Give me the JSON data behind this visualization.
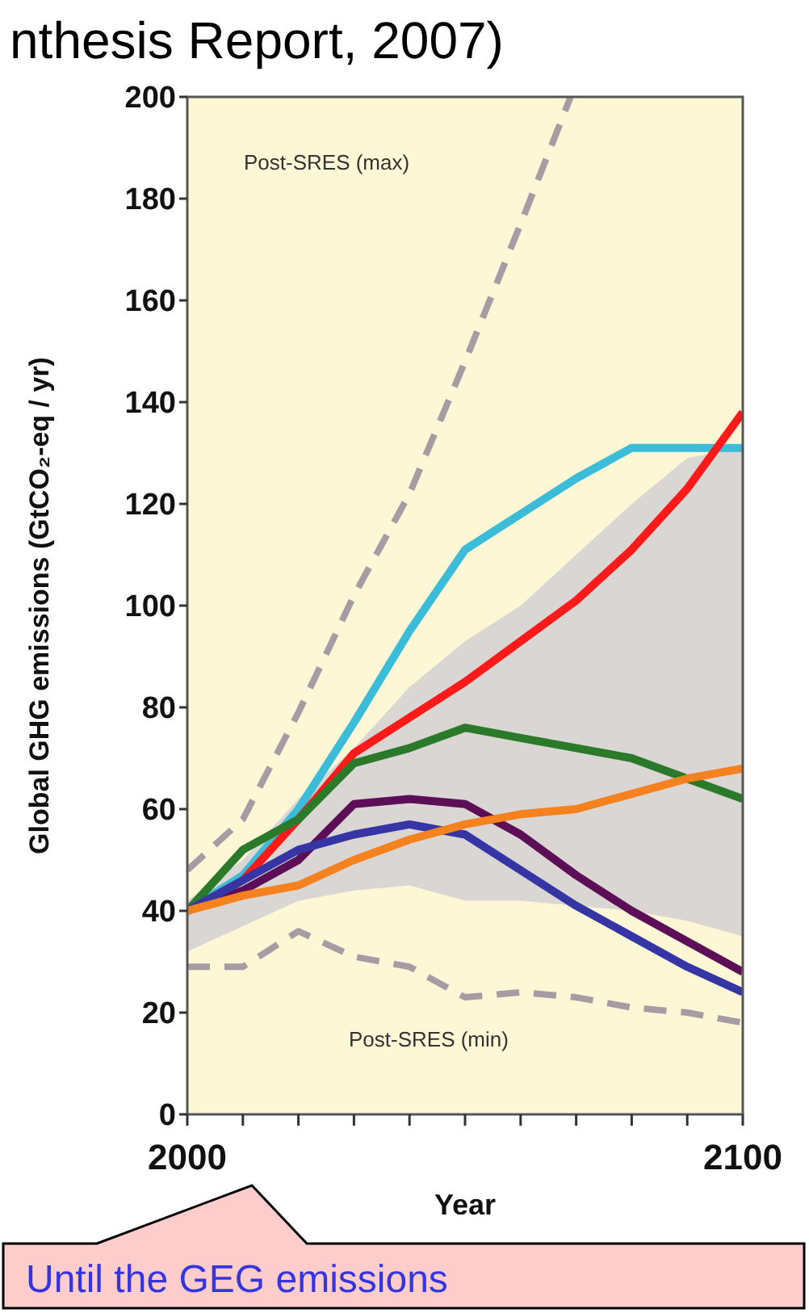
{
  "chart_data": {
    "type": "line",
    "xlabel": "Year",
    "ylabel": "Global GHG emissions (GtCO₂-eq / yr)",
    "x": [
      2000,
      2010,
      2020,
      2030,
      2040,
      2050,
      2060,
      2070,
      2080,
      2090,
      2100
    ],
    "xlim": [
      2000,
      2100
    ],
    "ylim": [
      0,
      200
    ],
    "xticks": [
      {
        "value": 2000,
        "label": "2000"
      },
      {
        "value": 2010,
        "label": null
      },
      {
        "value": 2020,
        "label": null
      },
      {
        "value": 2030,
        "label": null
      },
      {
        "value": 2040,
        "label": null
      },
      {
        "value": 2050,
        "label": null
      },
      {
        "value": 2060,
        "label": null
      },
      {
        "value": 2070,
        "label": null
      },
      {
        "value": 2080,
        "label": null
      },
      {
        "value": 2090,
        "label": null
      },
      {
        "value": 2100,
        "label": "2100"
      }
    ],
    "yticks": [
      0,
      20,
      40,
      60,
      80,
      100,
      120,
      140,
      160,
      180,
      200
    ],
    "grid": false,
    "series": [
      {
        "color": "#dad6d4",
        "values": [
          null,
          null,
          null,
          null,
          null,
          null,
          null,
          null,
          null,
          null,
          null
        ],
        "lower": [
          32,
          37,
          42,
          44,
          45,
          42,
          42,
          41,
          40,
          38,
          35
        ],
        "upper": [
          42,
          50,
          62,
          72,
          84,
          93,
          100,
          110,
          120,
          129,
          131
        ]
      },
      {
        "color": "#a89ca4",
        "line_style": "dashed",
        "x": [
          2000,
          2010,
          2020,
          2030,
          2040,
          2050,
          2060,
          2069
        ],
        "values": [
          48,
          58,
          79,
          102,
          122,
          148,
          175,
          200
        ]
      },
      {
        "color": "#a89ca4",
        "line_style": "dashed",
        "values": [
          29,
          29,
          36,
          31,
          29,
          23,
          24,
          23,
          21,
          20,
          18
        ]
      },
      {
        "color": "#3bbcd8",
        "values": [
          40,
          47,
          60,
          77,
          95,
          111,
          118,
          125,
          131,
          131,
          131
        ]
      },
      {
        "color": "#ff1a1a",
        "values": [
          40,
          46,
          58,
          71,
          78,
          85,
          93,
          101,
          111,
          123,
          138
        ]
      },
      {
        "color": "#2a7a2a",
        "values": [
          40,
          52,
          58,
          69,
          72,
          76,
          74,
          72,
          70,
          66,
          62
        ]
      },
      {
        "color": "#5c0f56",
        "values": [
          40,
          44,
          50,
          61,
          62,
          61,
          55,
          47,
          40,
          34,
          28
        ]
      },
      {
        "color": "#3535a5",
        "values": [
          40,
          46,
          52,
          55,
          57,
          55,
          48,
          41,
          35,
          29,
          24
        ]
      },
      {
        "color": "#f5821f",
        "values": [
          40,
          43,
          45,
          50,
          54,
          57,
          59,
          60,
          63,
          66,
          68
        ]
      }
    ],
    "annotations": [
      "nthesis Report, 2007)",
      "Post-SRES (max)",
      "Post-SRES (min)",
      "Until the GEG emissions"
    ]
  }
}
